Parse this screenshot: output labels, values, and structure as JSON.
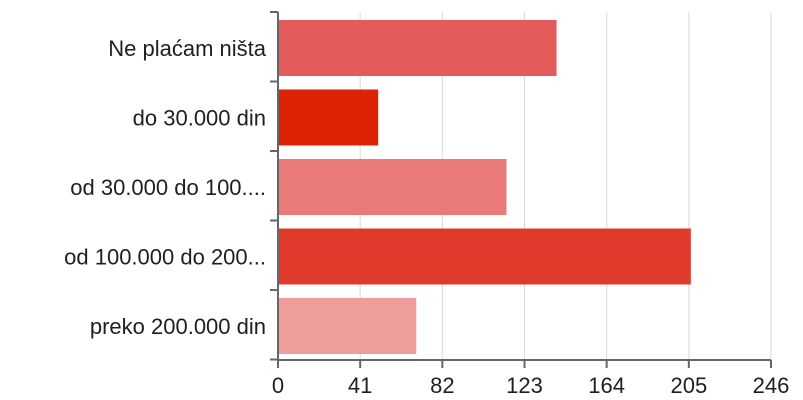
{
  "chart_data": {
    "type": "bar",
    "orientation": "horizontal",
    "title": "",
    "xlabel": "",
    "ylabel": "",
    "categories": [
      "Ne plaćam ništa",
      "do 30.000 din",
      "od 30.000 do 100....",
      "od 100.000 do 200...",
      "preko 200.000 din"
    ],
    "values": [
      139,
      50,
      114,
      206,
      69
    ],
    "bar_colors": [
      "#e35b5a",
      "#dc2303",
      "#e97a77",
      "#df3a2b",
      "#ee9d9a"
    ],
    "xlim": [
      0,
      246
    ],
    "x_ticks": [
      0,
      41,
      82,
      123,
      164,
      205,
      246
    ],
    "x_tick_labels": [
      "0",
      "41",
      "82",
      "123",
      "164",
      "205",
      "246"
    ],
    "grid": true,
    "legend": "none"
  }
}
